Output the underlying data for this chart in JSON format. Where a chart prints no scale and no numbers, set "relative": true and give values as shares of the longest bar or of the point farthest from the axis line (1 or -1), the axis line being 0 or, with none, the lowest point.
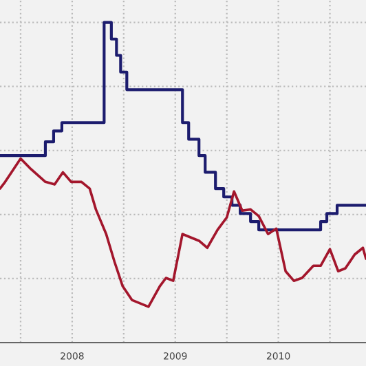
{
  "chart_data": {
    "type": "line",
    "relative": true,
    "grid": true,
    "x": [
      2007.8,
      2007.85,
      2008.0,
      2008.09,
      2008.24,
      2008.33,
      2008.41,
      2008.49,
      2008.59,
      2008.67,
      2008.73,
      2008.83,
      2008.91,
      2008.99,
      2009.08,
      2009.24,
      2009.35,
      2009.41,
      2009.48,
      2009.57,
      2009.73,
      2009.81,
      2009.91,
      2010.0,
      2010.07,
      2010.15,
      2010.23,
      2010.31,
      2010.4,
      2010.48,
      2010.57,
      2010.65,
      2010.73,
      2010.84,
      2010.91,
      2011.0,
      2011.08,
      2011.15,
      2011.24,
      2011.32,
      2011.35
    ],
    "xlim": [
      2007.8,
      2011.35
    ],
    "xticks": [
      {
        "value": 2008,
        "label": null
      },
      {
        "value": 2008.5,
        "label": "2008"
      },
      {
        "value": 2009,
        "label": null
      },
      {
        "value": 2009.5,
        "label": "2009"
      },
      {
        "value": 2010,
        "label": null
      },
      {
        "value": 2010.5,
        "label": "2010"
      },
      {
        "value": 2011,
        "label": null
      }
    ],
    "series": [
      {
        "type": "step",
        "color": "#1c1c6e",
        "x": [
          2007.8,
          2008.24,
          2008.32,
          2008.4,
          2008.81,
          2008.88,
          2008.93,
          2008.97,
          2009.03,
          2009.57,
          2009.63,
          2009.73,
          2009.79,
          2009.89,
          2009.97,
          2010.05,
          2010.13,
          2010.23,
          2010.31,
          2010.91,
          2010.97,
          2011.07,
          2011.35
        ],
        "values": [
          0.584,
          0.627,
          0.661,
          0.687,
          1.0,
          0.948,
          0.897,
          0.845,
          0.79,
          0.687,
          0.635,
          0.584,
          0.532,
          0.481,
          0.455,
          0.429,
          0.403,
          0.378,
          0.352,
          0.378,
          0.403,
          0.429,
          0.429
        ]
      },
      {
        "color": "#a3162c",
        "values": [
          0.481,
          0.502,
          0.575,
          0.545,
          0.502,
          0.494,
          0.532,
          0.502,
          0.502,
          0.481,
          0.416,
          0.339,
          0.253,
          0.176,
          0.133,
          0.112,
          0.176,
          0.202,
          0.193,
          0.339,
          0.318,
          0.296,
          0.352,
          0.391,
          0.472,
          0.412,
          0.416,
          0.395,
          0.339,
          0.356,
          0.223,
          0.193,
          0.202,
          0.24,
          0.24,
          0.292,
          0.223,
          0.232,
          0.275,
          0.296,
          0.262
        ]
      }
    ]
  }
}
